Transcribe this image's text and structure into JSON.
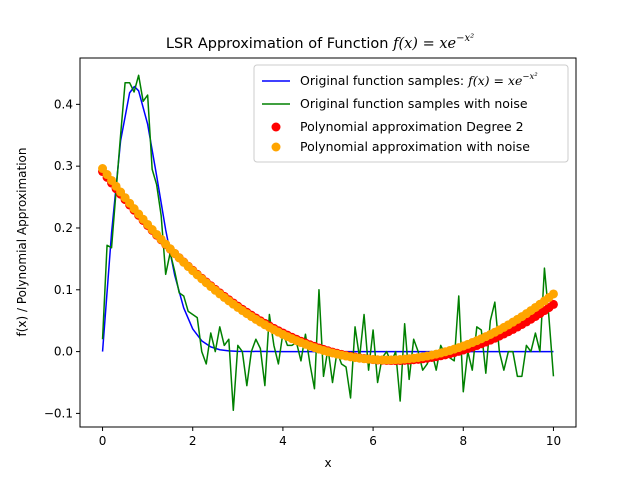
{
  "chart_data": {
    "type": "line",
    "title_prefix": "LSR Approximation of Function ",
    "title_math": "f(x) = xe",
    "title_exp": "−x²",
    "xlabel": "x",
    "ylabel": "f(x) / Polynomial Approximation",
    "xlim": [
      -0.5,
      10.5
    ],
    "ylim": [
      -0.122,
      0.475
    ],
    "xticks": [
      0,
      2,
      4,
      6,
      8,
      10
    ],
    "xtick_labels": [
      "0",
      "2",
      "4",
      "6",
      "8",
      "10"
    ],
    "yticks": [
      -0.1,
      0.0,
      0.1,
      0.2,
      0.3,
      0.4
    ],
    "ytick_labels": [
      "−0.1",
      "0.0",
      "0.1",
      "0.2",
      "0.3",
      "0.4"
    ],
    "grid": false,
    "legend_position": "upper-right",
    "legend": [
      {
        "label": "Original function samples: ",
        "math": "f(x) = xe",
        "exp": "−x²",
        "kind": "line",
        "color": "#0000ff"
      },
      {
        "label": "Original function samples with noise",
        "kind": "line",
        "color": "#008000"
      },
      {
        "label": "Polynomial approximation Degree 2",
        "kind": "scatter",
        "color": "#ff0000"
      },
      {
        "label": "Polynomial approximation with noise",
        "kind": "scatter",
        "color": "#ffa500"
      }
    ],
    "series": [
      {
        "name": "Original function samples: f(x) = xe^(-x^2)",
        "type": "line",
        "color": "#0000ff",
        "x": [
          0,
          0.2,
          0.4,
          0.6,
          0.7071,
          0.8,
          1.0,
          1.2,
          1.4,
          1.6,
          1.8,
          2.0,
          2.2,
          2.4,
          2.6,
          2.8,
          3.0,
          4.0,
          5.0,
          6.0,
          7.0,
          8.0,
          9.0,
          10.0
        ],
        "y": [
          0,
          0.1922,
          0.3409,
          0.4186,
          0.4289,
          0.4219,
          0.3679,
          0.2843,
          0.1971,
          0.1237,
          0.0706,
          0.0366,
          0.0174,
          0.0076,
          0.003,
          0.0011,
          0.0004,
          0.0,
          0.0,
          0.0,
          0.0,
          0.0,
          0.0,
          0.0
        ]
      },
      {
        "name": "Original function samples with noise",
        "type": "line",
        "color": "#008000",
        "x": [
          0,
          0.1,
          0.2,
          0.3,
          0.4,
          0.5,
          0.6,
          0.7,
          0.8,
          0.9,
          1.0,
          1.1,
          1.2,
          1.3,
          1.4,
          1.5,
          1.6,
          1.7,
          1.8,
          1.9,
          2.0,
          2.1,
          2.2,
          2.3,
          2.4,
          2.5,
          2.6,
          2.7,
          2.8,
          2.9,
          3.0,
          3.1,
          3.2,
          3.3,
          3.4,
          3.5,
          3.6,
          3.7,
          3.8,
          3.9,
          4.0,
          4.1,
          4.2,
          4.3,
          4.4,
          4.5,
          4.6,
          4.7,
          4.8,
          4.9,
          5.0,
          5.1,
          5.2,
          5.3,
          5.4,
          5.5,
          5.6,
          5.7,
          5.8,
          5.9,
          6.0,
          6.1,
          6.2,
          6.3,
          6.4,
          6.5,
          6.6,
          6.7,
          6.8,
          6.9,
          7.0,
          7.1,
          7.2,
          7.3,
          7.4,
          7.5,
          7.6,
          7.7,
          7.8,
          7.9,
          8.0,
          8.1,
          8.2,
          8.3,
          8.4,
          8.5,
          8.6,
          8.7,
          8.8,
          8.9,
          9.0,
          9.1,
          9.2,
          9.3,
          9.4,
          9.5,
          9.6,
          9.7,
          9.8,
          9.9,
          10.0
        ],
        "y": [
          0.02,
          0.172,
          0.168,
          0.26,
          0.35,
          0.435,
          0.435,
          0.42,
          0.447,
          0.405,
          0.415,
          0.295,
          0.27,
          0.22,
          0.125,
          0.16,
          0.13,
          0.095,
          0.09,
          0.065,
          0.06,
          0.055,
          0.0,
          -0.02,
          0.03,
          0.0,
          0.04,
          0.01,
          0.02,
          -0.095,
          0.01,
          0.0,
          -0.055,
          0.0,
          0.02,
          0.005,
          -0.055,
          0.06,
          0.01,
          -0.02,
          0.03,
          0.01,
          0.01,
          0.015,
          -0.015,
          0.028,
          -0.02,
          -0.06,
          0.1,
          -0.04,
          0.005,
          -0.05,
          0.0,
          -0.02,
          -0.025,
          -0.075,
          0.04,
          -0.01,
          0.06,
          -0.03,
          0.035,
          -0.05,
          -0.01,
          0.0,
          -0.018,
          0.0,
          -0.08,
          0.045,
          -0.045,
          0.02,
          0.0,
          -0.03,
          -0.02,
          0.0,
          -0.03,
          0.01,
          -0.005,
          -0.01,
          -0.015,
          0.09,
          -0.065,
          0.0,
          -0.03,
          0.04,
          0.035,
          -0.035,
          0.05,
          0.08,
          0.0,
          -0.03,
          0.0,
          0.0,
          -0.04,
          -0.04,
          0.01,
          0.0,
          0.03,
          0.0,
          0.135,
          0.055,
          -0.04
        ]
      },
      {
        "name": "Polynomial approximation Degree 2",
        "type": "scatter",
        "color": "#ff0000",
        "poly": [
          0.2913,
          -0.0945,
          0.0073
        ],
        "x_range": [
          0,
          10
        ],
        "n_points": 101
      },
      {
        "name": "Polynomial approximation with noise",
        "type": "scatter",
        "color": "#ffa500",
        "poly": [
          0.2962,
          -0.0983,
          0.0078
        ],
        "x_range": [
          0,
          10
        ],
        "n_points": 101
      }
    ]
  }
}
